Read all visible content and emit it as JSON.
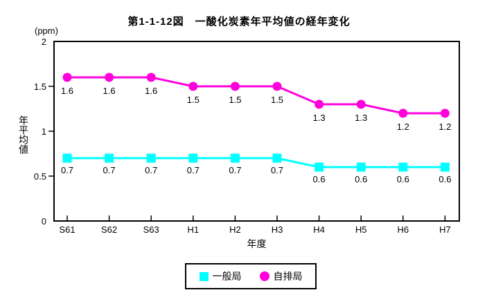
{
  "title": "第1-1-12図　一酸化炭素年平均値の経年変化",
  "y_axis": {
    "unit": "(ppm)",
    "title": "年平均値",
    "tick_labels": [
      "0",
      "0.5",
      "1",
      "1.5",
      "2"
    ]
  },
  "x_axis": {
    "title": "年度"
  },
  "legend": {
    "items": [
      {
        "label": "一般局",
        "marker": "square",
        "color": "#00ffff"
      },
      {
        "label": "自排局",
        "marker": "circle",
        "color": "#ff00dd"
      }
    ]
  },
  "chart_data": {
    "type": "line",
    "title": "第1-1-12図　一酸化炭素年平均値の経年変化",
    "xlabel": "年度",
    "ylabel": "年平均値",
    "y_unit": "(ppm)",
    "categories": [
      "S61",
      "S62",
      "S63",
      "H1",
      "H2",
      "H3",
      "H4",
      "H5",
      "H6",
      "H7"
    ],
    "series": [
      {
        "name": "一般局",
        "marker": "square",
        "color": "#00ffff",
        "values": [
          0.7,
          0.7,
          0.7,
          0.7,
          0.7,
          0.7,
          0.6,
          0.6,
          0.6,
          0.6
        ]
      },
      {
        "name": "自排局",
        "marker": "circle",
        "color": "#ff00dd",
        "values": [
          1.6,
          1.6,
          1.6,
          1.5,
          1.5,
          1.5,
          1.3,
          1.3,
          1.2,
          1.2
        ]
      }
    ],
    "ylim": [
      0,
      2
    ],
    "yticks": [
      0,
      0.5,
      1,
      1.5,
      2
    ],
    "grid": false,
    "data_labels": true,
    "legend_position": "bottom"
  }
}
